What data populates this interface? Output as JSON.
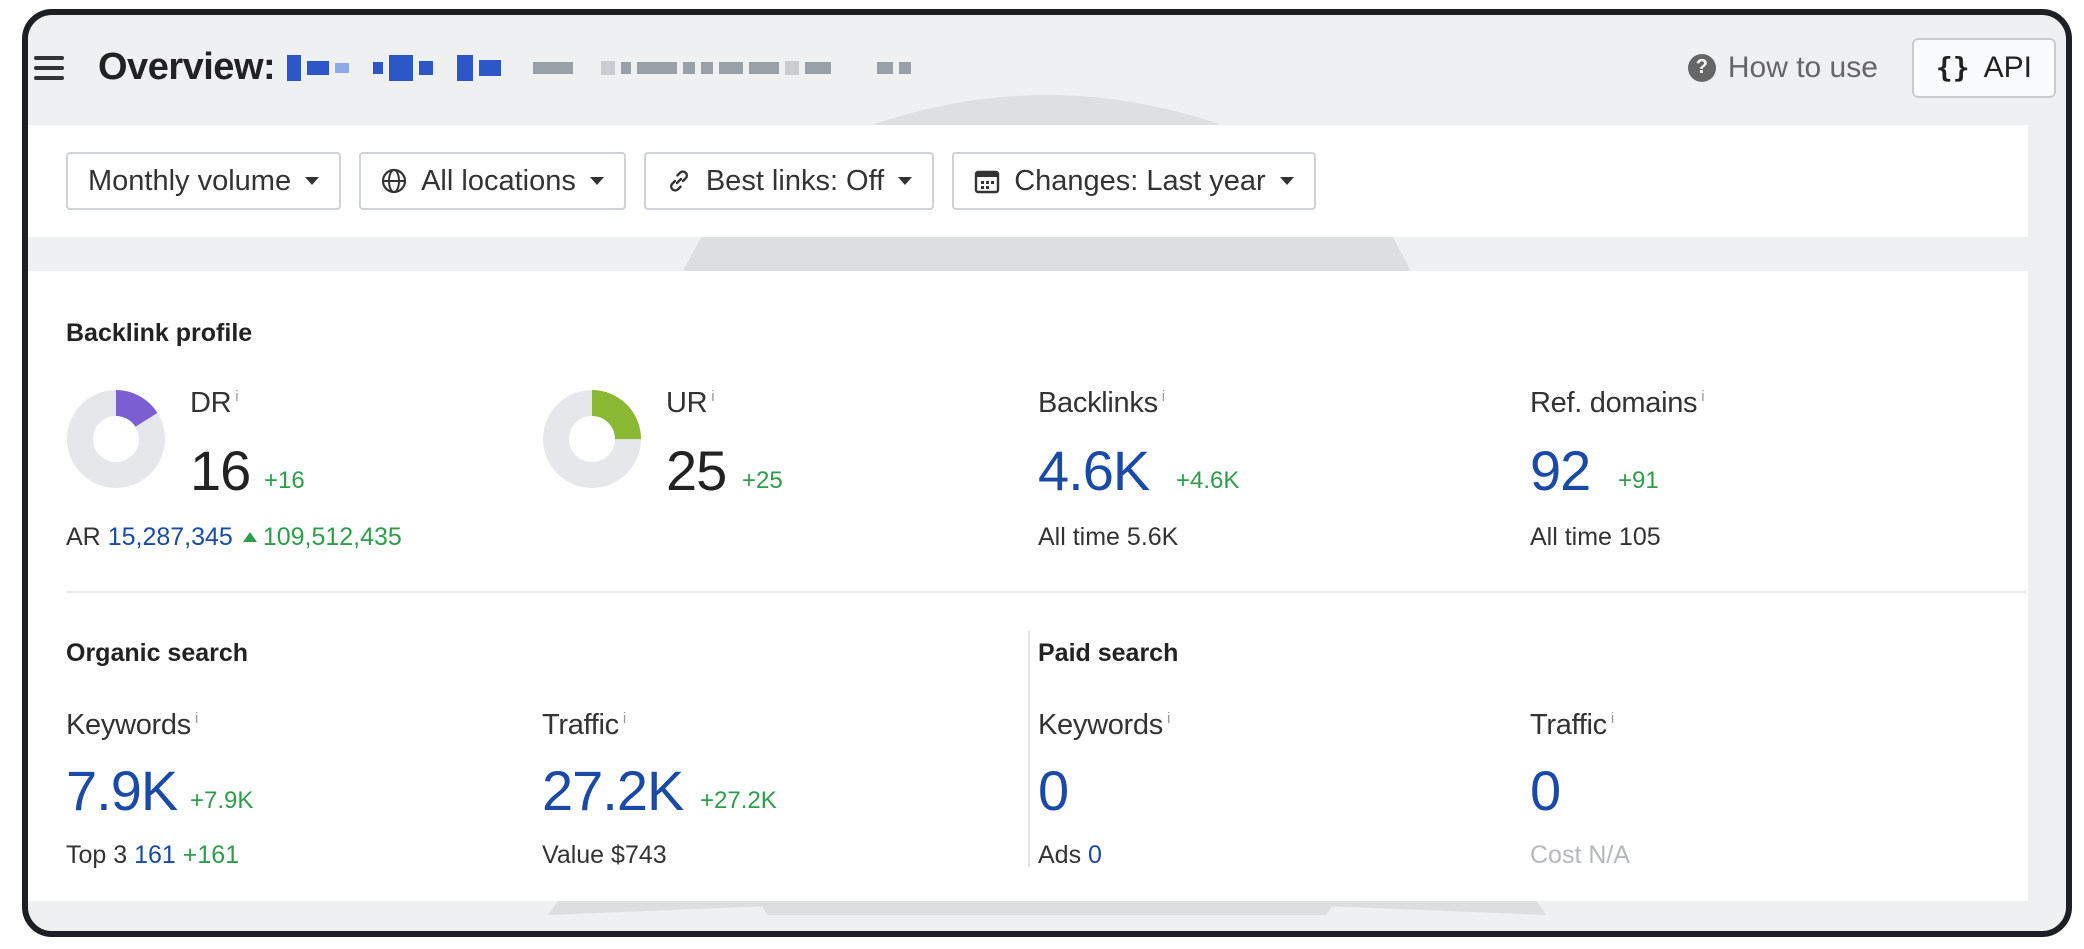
{
  "header": {
    "title": "Overview:",
    "how_to_use": "How to use",
    "api_label": "API"
  },
  "filters": [
    {
      "label": "Monthly volume",
      "icon": "none"
    },
    {
      "label": "All locations",
      "icon": "globe-icon"
    },
    {
      "label": "Best links: Off",
      "icon": "link-icon"
    },
    {
      "label": "Changes: Last year",
      "icon": "calendar-icon"
    }
  ],
  "backlink_profile": {
    "title": "Backlink profile",
    "dr": {
      "label": "DR",
      "value": "16",
      "delta": "+16",
      "fill_fraction": 0.16,
      "color": "#7b5fd0"
    },
    "ar": {
      "label": "AR",
      "value": "15,287,345",
      "change": "109,512,435"
    },
    "ur": {
      "label": "UR",
      "value": "25",
      "delta": "+25",
      "fill_fraction": 0.25,
      "color": "#8ab833"
    },
    "backlinks": {
      "label": "Backlinks",
      "value": "4.6K",
      "delta": "+4.6K",
      "alltime_label": "All time",
      "alltime_value": "5.6K"
    },
    "ref_domains": {
      "label": "Ref. domains",
      "value": "92",
      "delta": "+91",
      "alltime_label": "All time",
      "alltime_value": "105"
    }
  },
  "organic": {
    "title": "Organic search",
    "keywords": {
      "label": "Keywords",
      "value": "7.9K",
      "delta": "+7.9K",
      "top3_label": "Top 3",
      "top3_value": "161",
      "top3_delta": "+161"
    },
    "traffic": {
      "label": "Traffic",
      "value": "27.2K",
      "delta": "+27.2K",
      "value_label": "Value",
      "value_amount": "$743"
    }
  },
  "paid": {
    "title": "Paid search",
    "keywords": {
      "label": "Keywords",
      "value": "0",
      "ads_label": "Ads",
      "ads_value": "0"
    },
    "traffic": {
      "label": "Traffic",
      "value": "0",
      "cost_label": "Cost",
      "cost_value": "N/A"
    }
  },
  "info_marker": "i",
  "colors": {
    "accent_blue": "#1a4aa6",
    "positive_green": "#2e9d4a",
    "donut_track": "#e6e7ea"
  }
}
